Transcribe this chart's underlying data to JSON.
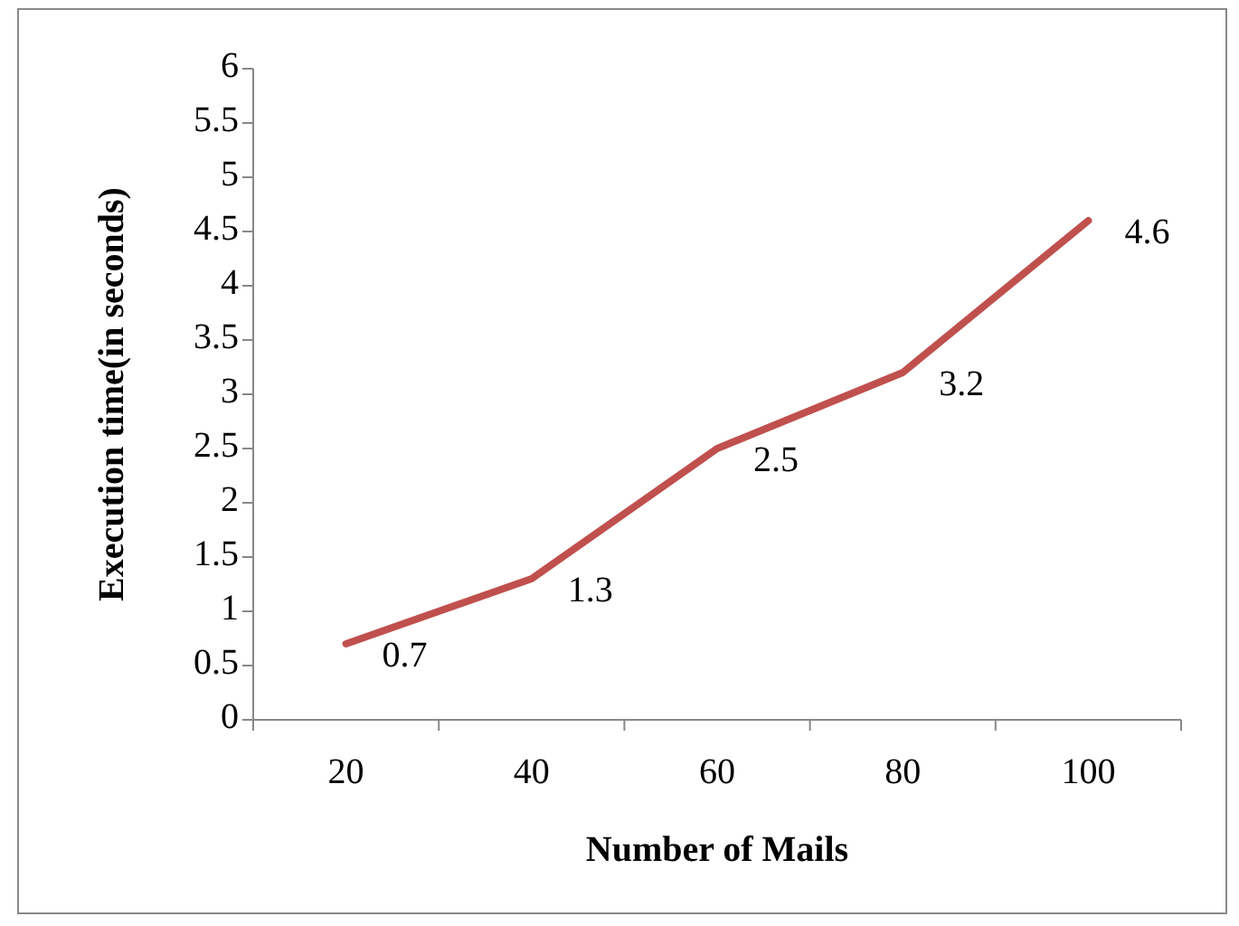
{
  "chart_data": {
    "type": "line",
    "xlabel": "Number of Mails",
    "ylabel": "Execution time(in seconds)",
    "categories": [
      "20",
      "40",
      "60",
      "80",
      "100"
    ],
    "series": [
      {
        "color": "#c0504d",
        "values": [
          0.7,
          1.3,
          2.5,
          3.2,
          4.6
        ]
      }
    ],
    "ylim": [
      0,
      6
    ],
    "yticks": [
      0,
      0.5,
      1,
      1.5,
      2,
      2.5,
      3,
      3.5,
      4,
      4.5,
      5,
      5.5,
      6
    ],
    "data_labels": true,
    "grid": false,
    "marker": "none",
    "line_style": "solid"
  }
}
